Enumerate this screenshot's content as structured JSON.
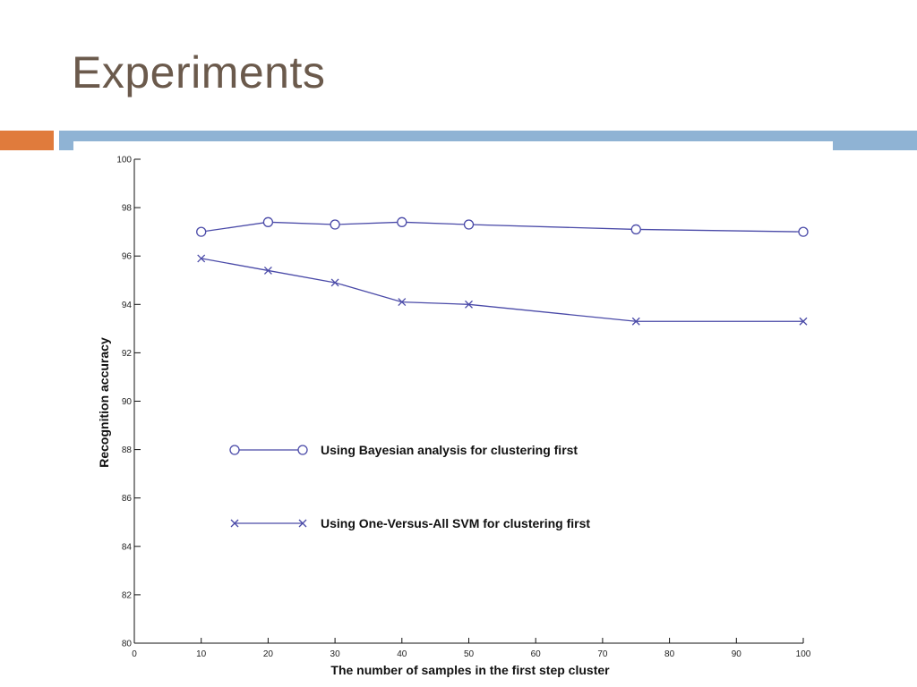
{
  "slide": {
    "title": "Experiments"
  },
  "colors": {
    "title": "#6b5a4c",
    "accent_orange": "#e07b3c",
    "accent_blue": "#8fb3d4",
    "series": "#4a4aa8"
  },
  "chart_data": {
    "type": "line",
    "xlabel": "The number of samples in the first step cluster",
    "ylabel": "Recognition accuracy",
    "xlim": [
      0,
      100
    ],
    "ylim": [
      80,
      100
    ],
    "xticks": [
      0,
      10,
      20,
      30,
      40,
      50,
      60,
      70,
      80,
      90,
      100
    ],
    "yticks": [
      80,
      82,
      84,
      86,
      88,
      90,
      92,
      94,
      96,
      98,
      100
    ],
    "grid": false,
    "legend_position": "center-left",
    "x": [
      10,
      20,
      30,
      40,
      50,
      75,
      100
    ],
    "series": [
      {
        "name": "Using Bayesian analysis for clustering first",
        "marker": "circle",
        "values": [
          97.0,
          97.4,
          97.3,
          97.4,
          97.3,
          97.1,
          97.0
        ]
      },
      {
        "name": "Using One-Versus-All SVM for clustering first",
        "marker": "x",
        "values": [
          95.9,
          95.4,
          94.9,
          94.1,
          94.0,
          93.3,
          93.3
        ]
      }
    ]
  }
}
